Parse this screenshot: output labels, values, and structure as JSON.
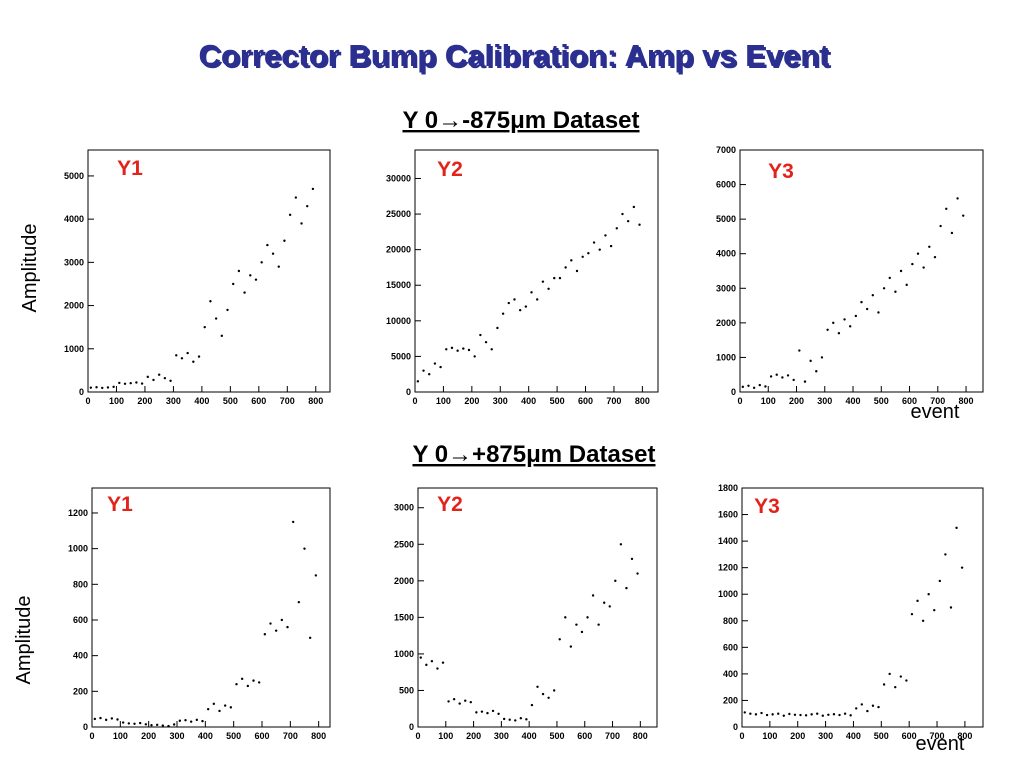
{
  "title": "Corrector Bump Calibration: Amp vs Event",
  "sections": [
    "Y 0→-875μm Dataset",
    "Y 0→+875μm Dataset"
  ],
  "chart_data": [
    {
      "type": "scatter",
      "label": "Y1",
      "y_label": "Amplitude",
      "color": "#000000",
      "xlim": [
        0,
        850
      ],
      "ylim": [
        0,
        5600
      ],
      "xticks": [
        0,
        100,
        200,
        300,
        400,
        500,
        600,
        700,
        800
      ],
      "yticks": [
        0,
        1000,
        2000,
        3000,
        4000,
        5000
      ],
      "x": [
        10,
        30,
        50,
        70,
        90,
        110,
        130,
        150,
        170,
        190,
        210,
        230,
        250,
        270,
        290,
        310,
        330,
        350,
        370,
        390,
        410,
        430,
        450,
        470,
        490,
        510,
        530,
        550,
        570,
        590,
        610,
        630,
        650,
        670,
        690,
        710,
        730,
        750,
        770,
        790
      ],
      "y": [
        100,
        110,
        95,
        105,
        120,
        210,
        190,
        205,
        220,
        195,
        350,
        280,
        400,
        320,
        260,
        850,
        780,
        900,
        700,
        820,
        1500,
        2100,
        1700,
        1300,
        1900,
        2500,
        2800,
        2300,
        2700,
        2600,
        3000,
        3400,
        3200,
        2900,
        3500,
        4100,
        4500,
        3900,
        4300,
        4700
      ]
    },
    {
      "type": "scatter",
      "label": "Y2",
      "color": "#000000",
      "xlim": [
        0,
        855
      ],
      "ylim": [
        0,
        34000
      ],
      "xticks": [
        0,
        100,
        200,
        300,
        400,
        500,
        600,
        700,
        800
      ],
      "yticks": [
        0,
        5000,
        10000,
        15000,
        20000,
        25000,
        30000
      ],
      "x": [
        10,
        30,
        50,
        70,
        90,
        110,
        130,
        150,
        170,
        190,
        210,
        230,
        250,
        270,
        290,
        310,
        330,
        350,
        370,
        390,
        410,
        430,
        450,
        470,
        490,
        510,
        530,
        550,
        570,
        590,
        610,
        630,
        650,
        670,
        690,
        710,
        730,
        750,
        770,
        790
      ],
      "y": [
        1500,
        3000,
        2500,
        4000,
        3500,
        6000,
        6200,
        5800,
        6100,
        5900,
        5000,
        8000,
        7000,
        6000,
        9000,
        11000,
        12500,
        13000,
        11500,
        12000,
        14000,
        13000,
        15500,
        14500,
        16000,
        16000,
        17500,
        18500,
        17000,
        19000,
        19500,
        21000,
        20000,
        22000,
        20500,
        23000,
        25000,
        24000,
        26000,
        23500
      ]
    },
    {
      "type": "scatter",
      "label": "Y3",
      "x_label": "event",
      "color": "#000000",
      "xlim": [
        0,
        860
      ],
      "ylim": [
        0,
        7000
      ],
      "xticks": [
        0,
        100,
        200,
        300,
        400,
        500,
        600,
        700,
        800
      ],
      "yticks": [
        0,
        1000,
        2000,
        3000,
        4000,
        5000,
        6000,
        7000
      ],
      "x": [
        10,
        30,
        50,
        70,
        90,
        110,
        130,
        150,
        170,
        190,
        210,
        230,
        250,
        270,
        290,
        310,
        330,
        350,
        370,
        390,
        410,
        430,
        450,
        470,
        490,
        510,
        530,
        550,
        570,
        590,
        610,
        630,
        650,
        670,
        690,
        710,
        730,
        750,
        770,
        790
      ],
      "y": [
        150,
        180,
        120,
        200,
        160,
        450,
        500,
        420,
        480,
        350,
        1200,
        300,
        900,
        600,
        1000,
        1800,
        2000,
        1700,
        2100,
        1900,
        2200,
        2600,
        2400,
        2800,
        2300,
        3000,
        3300,
        2900,
        3500,
        3100,
        3700,
        4000,
        3600,
        4200,
        3900,
        4800,
        5300,
        4600,
        5600,
        5100
      ]
    },
    {
      "type": "scatter",
      "label": "Y1",
      "y_label": "Amplitude",
      "color": "#000000",
      "xlim": [
        0,
        840
      ],
      "ylim": [
        0,
        1340
      ],
      "xticks": [
        0,
        100,
        200,
        300,
        400,
        500,
        600,
        700,
        800
      ],
      "yticks": [
        0,
        200,
        400,
        600,
        800,
        1000,
        1200
      ],
      "x": [
        10,
        30,
        50,
        70,
        90,
        110,
        130,
        150,
        170,
        190,
        210,
        230,
        250,
        270,
        290,
        310,
        330,
        350,
        370,
        390,
        410,
        430,
        450,
        470,
        490,
        510,
        530,
        550,
        570,
        590,
        610,
        630,
        650,
        670,
        690,
        710,
        730,
        750,
        770,
        790
      ],
      "y": [
        45,
        50,
        40,
        48,
        42,
        25,
        20,
        18,
        22,
        15,
        10,
        12,
        8,
        5,
        14,
        35,
        38,
        30,
        40,
        33,
        100,
        130,
        90,
        120,
        110,
        240,
        270,
        230,
        260,
        250,
        520,
        580,
        540,
        600,
        560,
        1150,
        700,
        1000,
        500,
        850
      ]
    },
    {
      "type": "scatter",
      "label": "Y2",
      "color": "#000000",
      "xlim": [
        0,
        860
      ],
      "ylim": [
        0,
        3270
      ],
      "xticks": [
        0,
        100,
        200,
        300,
        400,
        500,
        600,
        700,
        800
      ],
      "yticks": [
        0,
        500,
        1000,
        1500,
        2000,
        2500,
        3000
      ],
      "x": [
        10,
        30,
        50,
        70,
        90,
        110,
        130,
        150,
        170,
        190,
        210,
        230,
        250,
        270,
        290,
        310,
        330,
        350,
        370,
        390,
        410,
        430,
        450,
        470,
        490,
        510,
        530,
        550,
        570,
        590,
        610,
        630,
        650,
        670,
        690,
        710,
        730,
        750,
        770,
        790
      ],
      "y": [
        950,
        850,
        900,
        800,
        880,
        350,
        380,
        320,
        360,
        340,
        200,
        210,
        190,
        220,
        180,
        110,
        100,
        90,
        120,
        105,
        300,
        550,
        450,
        400,
        500,
        1200,
        1500,
        1100,
        1400,
        1300,
        1500,
        1800,
        1400,
        1700,
        1650,
        2000,
        2500,
        1900,
        2300,
        2100
      ]
    },
    {
      "type": "scatter",
      "label": "Y3",
      "x_label": "event",
      "color": "#000000",
      "xlim": [
        0,
        865
      ],
      "ylim": [
        0,
        1800
      ],
      "xticks": [
        0,
        100,
        200,
        300,
        400,
        500,
        600,
        700,
        800
      ],
      "yticks": [
        0,
        200,
        400,
        600,
        800,
        1000,
        1200,
        1400,
        1600,
        1800
      ],
      "x": [
        10,
        30,
        50,
        70,
        90,
        110,
        130,
        150,
        170,
        190,
        210,
        230,
        250,
        270,
        290,
        310,
        330,
        350,
        370,
        390,
        410,
        430,
        450,
        470,
        490,
        510,
        530,
        550,
        570,
        590,
        610,
        630,
        650,
        670,
        690,
        710,
        730,
        750,
        770,
        790
      ],
      "y": [
        110,
        100,
        95,
        105,
        90,
        95,
        100,
        85,
        98,
        92,
        90,
        88,
        95,
        100,
        85,
        92,
        96,
        90,
        100,
        88,
        140,
        170,
        120,
        160,
        150,
        320,
        400,
        300,
        380,
        350,
        850,
        950,
        800,
        1000,
        880,
        1100,
        1300,
        900,
        1500,
        1200
      ]
    }
  ]
}
